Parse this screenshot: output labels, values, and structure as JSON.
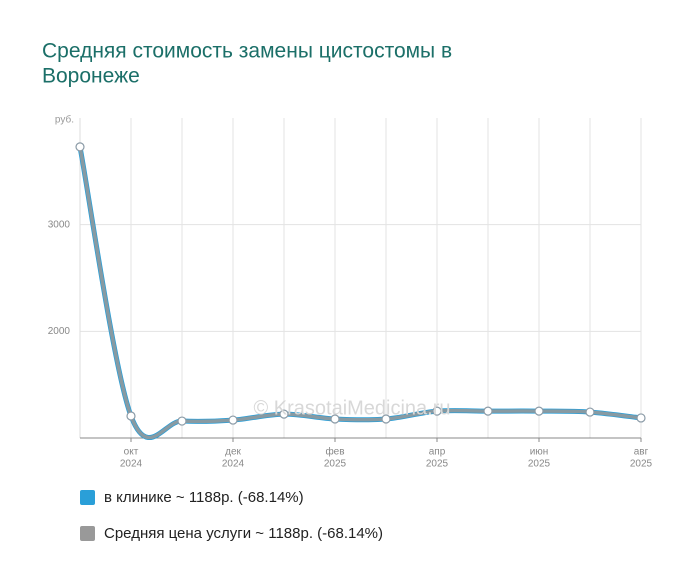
{
  "chart_data": {
    "type": "line",
    "title_lines": [
      "Средняя стоимость замены цистостомы в",
      "Воронеже"
    ],
    "y_unit": "руб.",
    "watermark": "© KrasotaiMedicina.ru",
    "categories": [
      null,
      "окт",
      null,
      "дек",
      null,
      "фев",
      null,
      "апр",
      null,
      "июн",
      null,
      "авг"
    ],
    "category_years": [
      null,
      "2024",
      null,
      "2024",
      null,
      "2025",
      null,
      "2025",
      null,
      "2025",
      null,
      "2025"
    ],
    "series": [
      {
        "name": "в клинике ~ 1188р. (-68.14%)",
        "color": "#2a9fd8",
        "values": [
          3729,
          1206,
          1159,
          1168,
          1224,
          1178,
          1178,
          1252,
          1252,
          1252,
          1243,
          1188
        ]
      },
      {
        "name": "Средняя цена услуги ~ 1188р. (-68.14%)",
        "color": "#999999",
        "values": [
          3729,
          1206,
          1159,
          1168,
          1224,
          1178,
          1178,
          1252,
          1252,
          1252,
          1243,
          1188
        ]
      }
    ],
    "ylim": [
      1000,
      4000
    ],
    "yticks": [
      2000,
      3000
    ],
    "grid": true
  }
}
